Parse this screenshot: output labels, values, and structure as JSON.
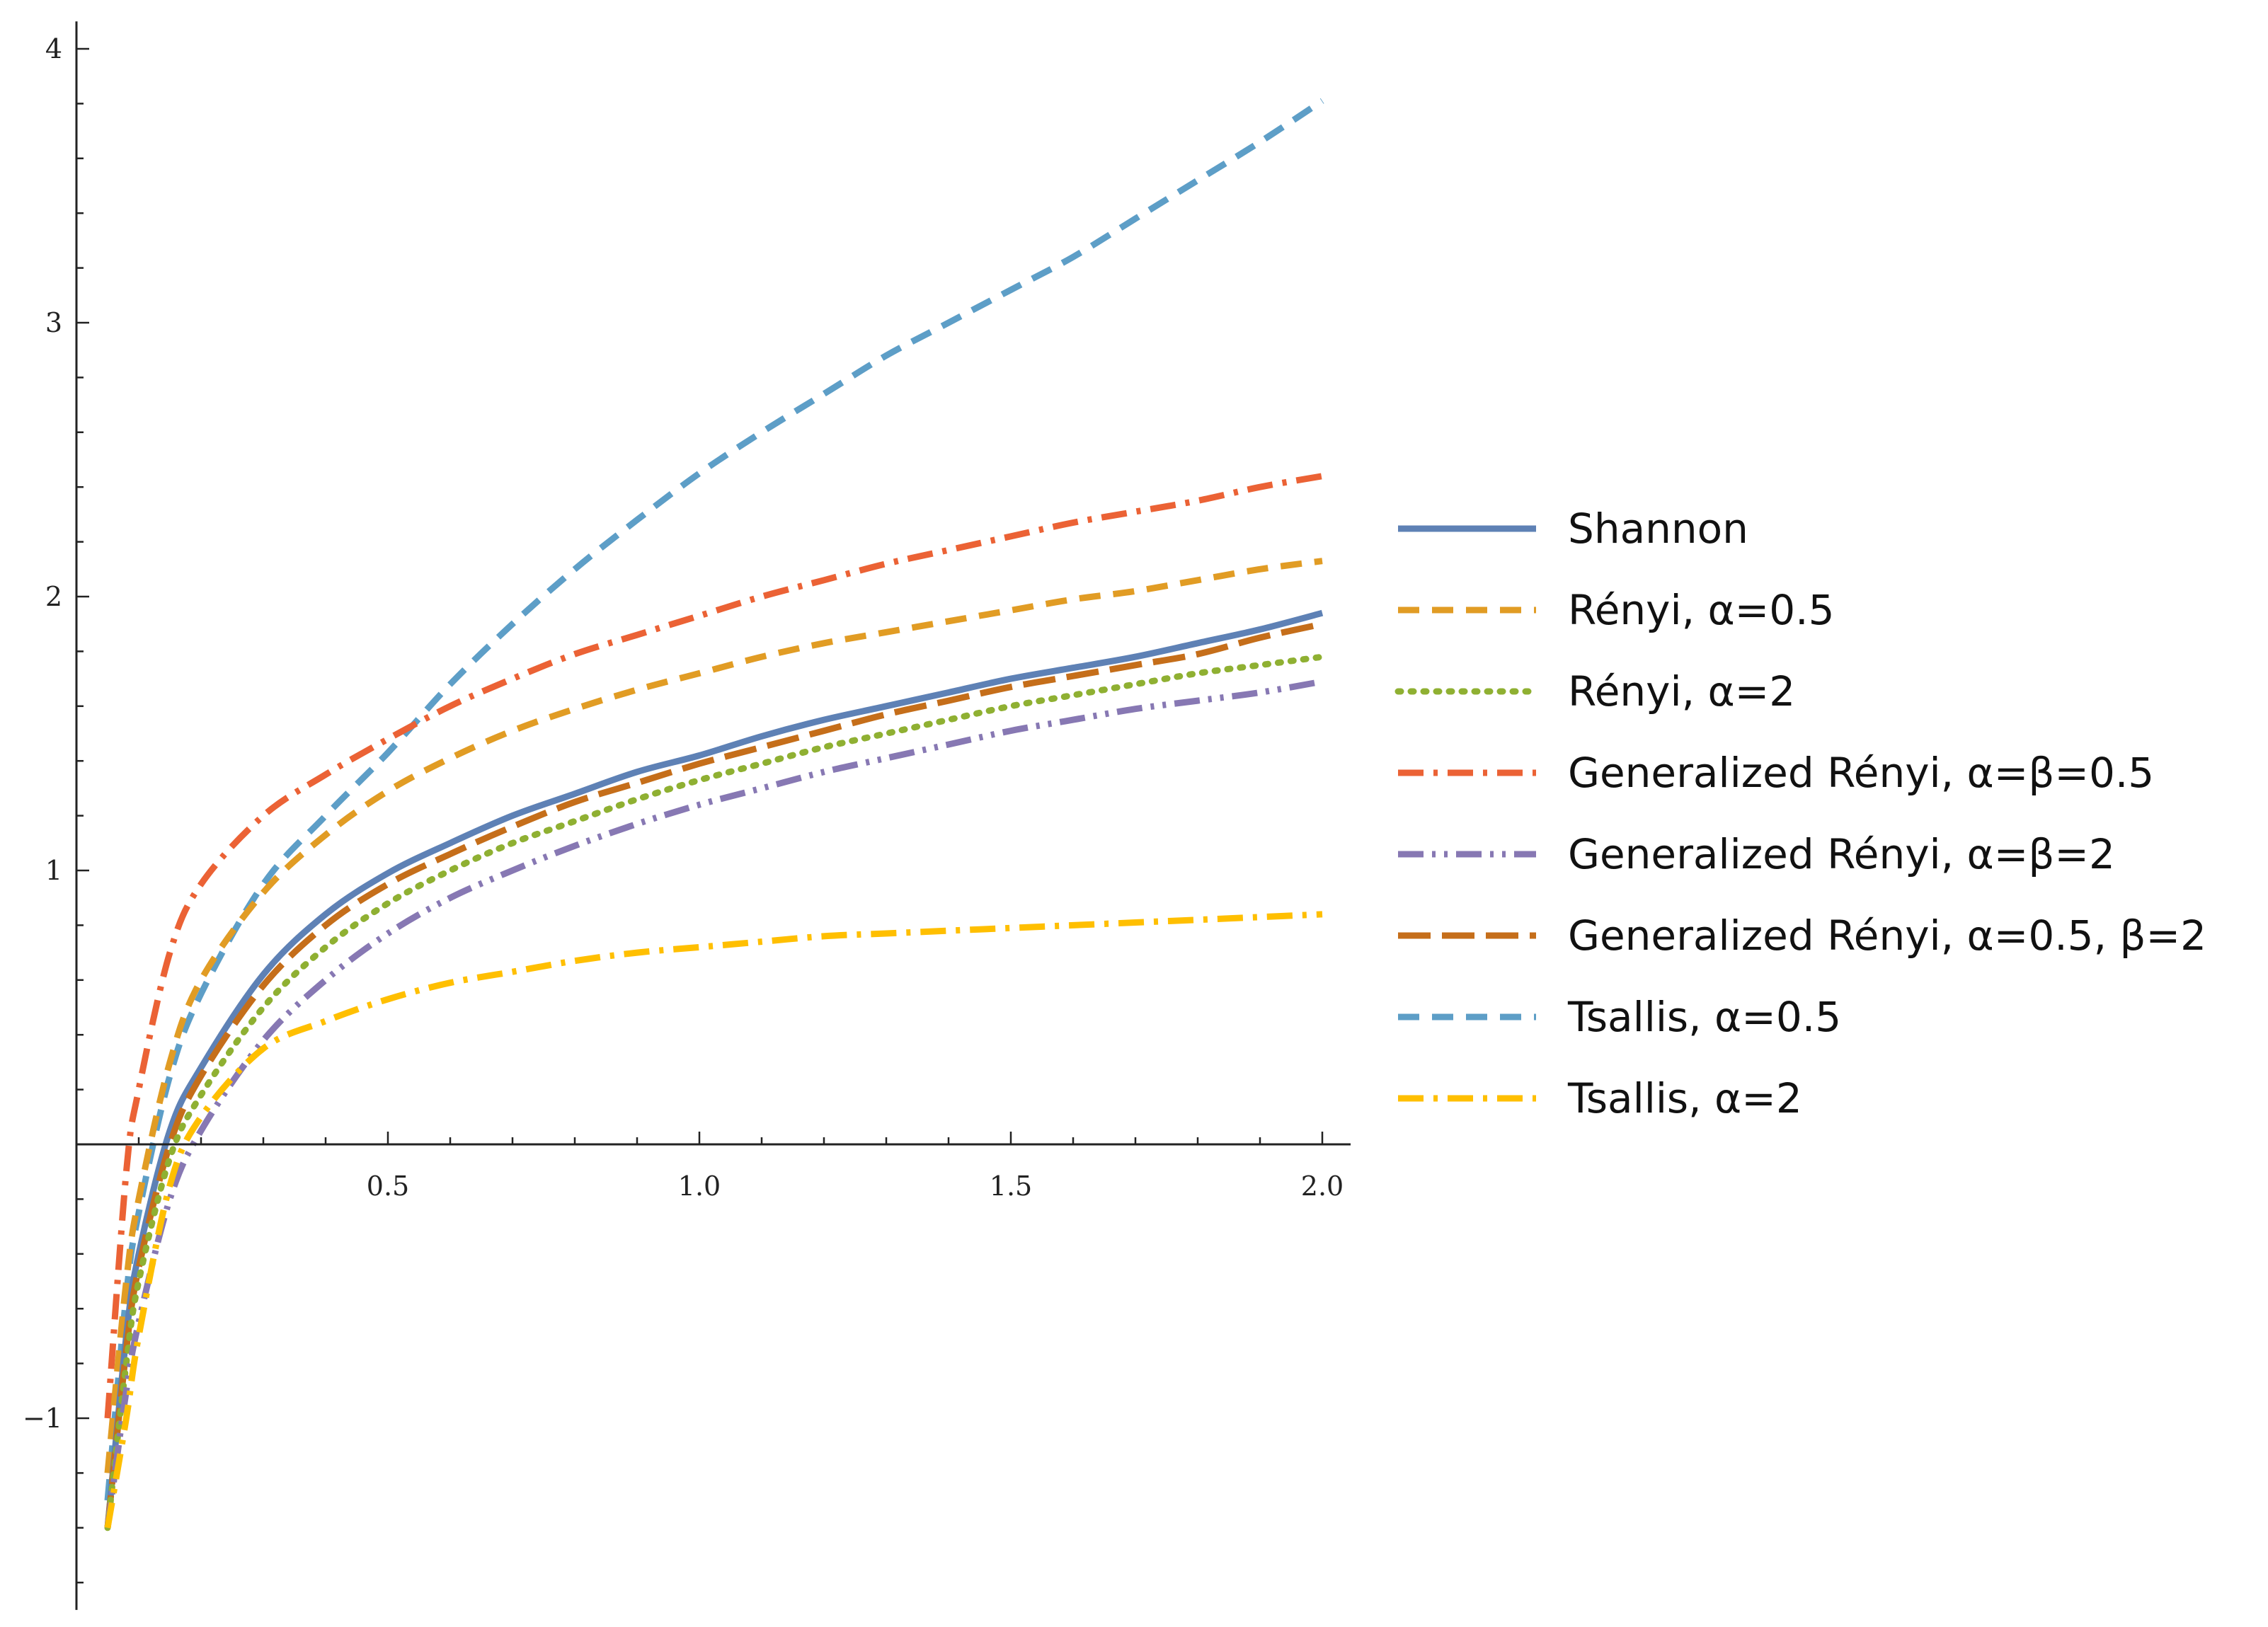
{
  "chart_data": {
    "type": "line",
    "title": "",
    "xlabel": "",
    "ylabel": "",
    "xlim": [
      0.0,
      2.0
    ],
    "ylim": [
      -1.7,
      4.1
    ],
    "grid": false,
    "legend_position": "right",
    "x_ticks": [
      {
        "value": 0.5,
        "label": "0.5"
      },
      {
        "value": 1.0,
        "label": "1.0"
      },
      {
        "value": 1.5,
        "label": "1.5"
      },
      {
        "value": 2.0,
        "label": "2.0"
      }
    ],
    "y_ticks": [
      {
        "value": -1,
        "label": "−1"
      },
      {
        "value": 1,
        "label": "1"
      },
      {
        "value": 2,
        "label": "2"
      },
      {
        "value": 3,
        "label": "3"
      },
      {
        "value": 4,
        "label": "4"
      }
    ],
    "x": [
      0.05,
      0.08,
      0.1,
      0.15,
      0.2,
      0.3,
      0.4,
      0.5,
      0.6,
      0.7,
      0.8,
      0.9,
      1.0,
      1.1,
      1.2,
      1.3,
      1.4,
      1.5,
      1.6,
      1.7,
      1.8,
      1.9,
      2.0
    ],
    "series": [
      {
        "name": "Shannon",
        "color": "#5E81B5",
        "dash": "solid",
        "values": [
          -1.4,
          -0.7,
          -0.4,
          0.05,
          0.28,
          0.62,
          0.84,
          0.99,
          1.1,
          1.2,
          1.28,
          1.36,
          1.42,
          1.49,
          1.55,
          1.6,
          1.65,
          1.7,
          1.74,
          1.78,
          1.83,
          1.88,
          1.94
        ]
      },
      {
        "name": "Rényi, α=0.5",
        "color": "#E19C24",
        "dash": "dashed",
        "values": [
          -1.2,
          -0.5,
          -0.2,
          0.3,
          0.6,
          0.92,
          1.13,
          1.29,
          1.41,
          1.51,
          1.59,
          1.66,
          1.72,
          1.78,
          1.83,
          1.87,
          1.91,
          1.95,
          1.99,
          2.02,
          2.06,
          2.1,
          2.13
        ]
      },
      {
        "name": "Rényi, α=2",
        "color": "#8FB032",
        "dash": "dotted",
        "values": [
          -1.4,
          -0.8,
          -0.5,
          -0.05,
          0.18,
          0.5,
          0.72,
          0.88,
          1.0,
          1.1,
          1.18,
          1.26,
          1.33,
          1.39,
          1.45,
          1.5,
          1.55,
          1.6,
          1.64,
          1.68,
          1.72,
          1.75,
          1.78
        ]
      },
      {
        "name": "Generalized Rényi, α=β=0.5",
        "color": "#EB6235",
        "dash": "dashdot",
        "values": [
          -1.0,
          -0.1,
          0.2,
          0.7,
          0.95,
          1.2,
          1.35,
          1.48,
          1.6,
          1.7,
          1.79,
          1.86,
          1.93,
          2.0,
          2.06,
          2.12,
          2.17,
          2.22,
          2.27,
          2.31,
          2.35,
          2.4,
          2.44
        ]
      },
      {
        "name": "Generalized Rényi, α=β=2",
        "color": "#8778B3",
        "dash": "dashdotdot",
        "values": [
          -1.4,
          -0.9,
          -0.65,
          -0.2,
          0.05,
          0.38,
          0.6,
          0.77,
          0.9,
          1.0,
          1.09,
          1.17,
          1.24,
          1.3,
          1.36,
          1.41,
          1.46,
          1.51,
          1.55,
          1.59,
          1.62,
          1.65,
          1.69
        ]
      },
      {
        "name": "Generalized Rényi, α=0.5, β=2",
        "color": "#C56E1A",
        "dash": "longdash",
        "values": [
          -1.4,
          -0.75,
          -0.45,
          0.0,
          0.25,
          0.58,
          0.8,
          0.95,
          1.06,
          1.16,
          1.25,
          1.32,
          1.39,
          1.45,
          1.51,
          1.57,
          1.62,
          1.67,
          1.71,
          1.75,
          1.79,
          1.85,
          1.9
        ]
      },
      {
        "name": "Tsallis, α=0.5",
        "color": "#5D9EC7",
        "dash": "dashed",
        "values": [
          -1.3,
          -0.55,
          -0.25,
          0.25,
          0.55,
          0.95,
          1.2,
          1.43,
          1.68,
          1.9,
          2.1,
          2.28,
          2.45,
          2.6,
          2.74,
          2.88,
          3.0,
          3.12,
          3.24,
          3.38,
          3.52,
          3.66,
          3.81
        ]
      },
      {
        "name": "Tsallis, α=2",
        "color": "#FFBF00",
        "dash": "dashdot",
        "values": [
          -1.4,
          -1.0,
          -0.7,
          -0.15,
          0.1,
          0.35,
          0.45,
          0.53,
          0.59,
          0.63,
          0.67,
          0.7,
          0.72,
          0.74,
          0.76,
          0.77,
          0.78,
          0.79,
          0.8,
          0.81,
          0.82,
          0.83,
          0.84
        ]
      }
    ]
  }
}
